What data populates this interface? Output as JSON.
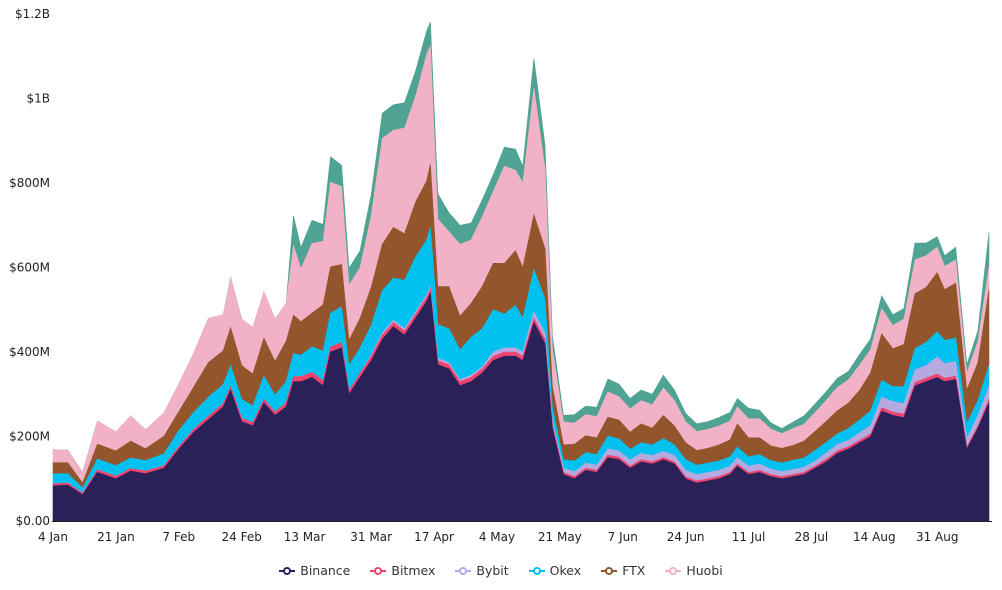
{
  "chart_data": {
    "type": "area",
    "stacked": true,
    "title": "",
    "xlabel": "",
    "ylabel": "",
    "ylim": [
      0,
      1200
    ],
    "y_unit": "M USD",
    "y_ticks": [
      {
        "value": 0,
        "label": "$0.00"
      },
      {
        "value": 200,
        "label": "$200M"
      },
      {
        "value": 400,
        "label": "$400M"
      },
      {
        "value": 600,
        "label": "$600M"
      },
      {
        "value": 800,
        "label": "$800M"
      },
      {
        "value": 1000,
        "label": "$1B"
      },
      {
        "value": 1200,
        "label": "$1.2B"
      }
    ],
    "x_unit": "days since 4 Jan",
    "xlim": [
      0,
      253
    ],
    "x_ticks": [
      {
        "value": 0,
        "label": "4 Jan"
      },
      {
        "value": 17,
        "label": "21 Jan"
      },
      {
        "value": 34,
        "label": "7 Feb"
      },
      {
        "value": 51,
        "label": "24 Feb"
      },
      {
        "value": 68,
        "label": "13 Mar"
      },
      {
        "value": 86,
        "label": "31 Mar"
      },
      {
        "value": 103,
        "label": "17 Apr"
      },
      {
        "value": 120,
        "label": "4 May"
      },
      {
        "value": 137,
        "label": "21 May"
      },
      {
        "value": 154,
        "label": "7 Jun"
      },
      {
        "value": 171,
        "label": "24 Jun"
      },
      {
        "value": 188,
        "label": "11 Jul"
      },
      {
        "value": 205,
        "label": "28 Jul"
      },
      {
        "value": 222,
        "label": "14 Aug"
      },
      {
        "value": 239,
        "label": "31 Aug"
      }
    ],
    "x": [
      0,
      4,
      8,
      12,
      17,
      21,
      25,
      30,
      34,
      38,
      42,
      46,
      48,
      51,
      54,
      57,
      60,
      63,
      65,
      67,
      70,
      73,
      75,
      78,
      80,
      83,
      86,
      89,
      92,
      95,
      98,
      101,
      102,
      104,
      107,
      110,
      113,
      116,
      119,
      122,
      125,
      127,
      130,
      133,
      135,
      138,
      141,
      144,
      147,
      150,
      153,
      156,
      159,
      162,
      165,
      168,
      171,
      174,
      177,
      180,
      183,
      185,
      188,
      191,
      194,
      197,
      200,
      203,
      206,
      209,
      212,
      215,
      218,
      221,
      224,
      227,
      230,
      233,
      236,
      239,
      241,
      244,
      247,
      250,
      253
    ],
    "legend_position": "bottom",
    "grid": false,
    "series": [
      {
        "name": "Binance",
        "color": "#2b2159",
        "in_legend": true,
        "values": [
          83,
          85,
          62,
          115,
          100,
          118,
          112,
          125,
          170,
          210,
          240,
          270,
          310,
          235,
          225,
          280,
          250,
          270,
          330,
          330,
          340,
          320,
          400,
          410,
          300,
          340,
          380,
          430,
          460,
          440,
          480,
          520,
          540,
          370,
          360,
          320,
          330,
          350,
          380,
          390,
          390,
          380,
          470,
          420,
          220,
          110,
          100,
          120,
          115,
          150,
          145,
          125,
          140,
          135,
          145,
          135,
          100,
          90,
          95,
          100,
          110,
          130,
          110,
          115,
          105,
          100,
          105,
          110,
          125,
          140,
          160,
          170,
          185,
          200,
          260,
          250,
          245,
          320,
          330,
          340,
          330,
          335,
          170,
          220,
          280
        ]
      },
      {
        "name": "Bitmex",
        "color": "#ef4470",
        "in_legend": true,
        "values": [
          5,
          5,
          4,
          6,
          6,
          6,
          6,
          6,
          6,
          7,
          8,
          8,
          8,
          8,
          8,
          8,
          8,
          10,
          12,
          12,
          12,
          12,
          12,
          12,
          8,
          10,
          10,
          10,
          10,
          10,
          10,
          10,
          10,
          10,
          10,
          10,
          10,
          10,
          10,
          10,
          10,
          10,
          10,
          10,
          8,
          5,
          5,
          5,
          5,
          6,
          6,
          5,
          5,
          5,
          5,
          5,
          5,
          5,
          5,
          5,
          5,
          5,
          5,
          5,
          5,
          5,
          5,
          5,
          5,
          6,
          6,
          6,
          6,
          6,
          8,
          8,
          8,
          8,
          8,
          8,
          8,
          8,
          5,
          5,
          8
        ]
      },
      {
        "name": "Bybit",
        "color": "#b4aae0",
        "in_legend": true,
        "values": [
          0,
          0,
          0,
          0,
          0,
          0,
          0,
          0,
          0,
          0,
          0,
          0,
          0,
          0,
          0,
          0,
          0,
          0,
          0,
          0,
          0,
          0,
          0,
          0,
          0,
          0,
          3,
          5,
          5,
          5,
          5,
          5,
          5,
          5,
          5,
          5,
          5,
          5,
          10,
          10,
          10,
          10,
          15,
          15,
          10,
          10,
          12,
          12,
          12,
          15,
          15,
          15,
          15,
          15,
          15,
          15,
          15,
          15,
          15,
          15,
          15,
          15,
          15,
          15,
          13,
          12,
          12,
          12,
          12,
          15,
          15,
          15,
          18,
          20,
          25,
          25,
          25,
          30,
          30,
          40,
          35,
          35,
          20,
          25,
          30
        ]
      },
      {
        "name": "Okex",
        "color": "#00c1ef",
        "in_legend": true,
        "values": [
          24,
          22,
          12,
          26,
          25,
          25,
          25,
          28,
          38,
          40,
          45,
          45,
          50,
          45,
          40,
          55,
          40,
          50,
          55,
          50,
          60,
          70,
          80,
          85,
          60,
          60,
          70,
          100,
          100,
          115,
          130,
          130,
          140,
          80,
          80,
          70,
          90,
          90,
          100,
          80,
          100,
          80,
          100,
          80,
          30,
          20,
          25,
          25,
          25,
          30,
          28,
          25,
          25,
          25,
          30,
          25,
          25,
          22,
          22,
          22,
          22,
          25,
          22,
          22,
          20,
          20,
          22,
          22,
          25,
          25,
          25,
          28,
          30,
          35,
          40,
          35,
          40,
          50,
          55,
          60,
          55,
          55,
          35,
          35,
          50
        ]
      },
      {
        "name": "FTX",
        "color": "#93562c",
        "in_legend": true,
        "values": [
          26,
          26,
          12,
          35,
          35,
          40,
          28,
          42,
          45,
          60,
          82,
          80,
          90,
          80,
          75,
          90,
          80,
          95,
          90,
          80,
          80,
          110,
          110,
          100,
          60,
          70,
          90,
          110,
          120,
          110,
          130,
          140,
          150,
          90,
          100,
          80,
          80,
          100,
          110,
          120,
          130,
          120,
          130,
          120,
          50,
          35,
          40,
          40,
          40,
          45,
          45,
          40,
          45,
          40,
          55,
          45,
          40,
          35,
          35,
          38,
          40,
          55,
          45,
          40,
          35,
          35,
          35,
          40,
          45,
          50,
          55,
          60,
          70,
          90,
          110,
          90,
          100,
          130,
          130,
          140,
          120,
          130,
          80,
          90,
          180
        ]
      },
      {
        "name": "Huobi",
        "color": "#f1b1c7",
        "in_legend": true,
        "values": [
          31,
          30,
          25,
          55,
          45,
          60,
          45,
          55,
          65,
          80,
          105,
          85,
          120,
          110,
          110,
          110,
          100,
          90,
          165,
          125,
          165,
          150,
          200,
          185,
          130,
          120,
          170,
          250,
          230,
          250,
          250,
          300,
          280,
          160,
          130,
          170,
          150,
          165,
          170,
          230,
          190,
          200,
          300,
          190,
          90,
          55,
          50,
          50,
          50,
          60,
          55,
          55,
          55,
          55,
          65,
          60,
          50,
          45,
          45,
          45,
          45,
          40,
          45,
          45,
          40,
          35,
          40,
          40,
          45,
          50,
          55,
          55,
          60,
          55,
          60,
          55,
          60,
          80,
          75,
          60,
          55,
          55,
          40,
          50,
          55
        ]
      },
      {
        "name": "",
        "color": "#4ea392",
        "in_legend": false,
        "values": [
          0,
          0,
          0,
          0,
          0,
          0,
          0,
          0,
          0,
          0,
          0,
          0,
          0,
          0,
          0,
          0,
          0,
          0,
          70,
          50,
          55,
          40,
          60,
          50,
          40,
          40,
          50,
          60,
          60,
          60,
          60,
          55,
          56,
          60,
          45,
          45,
          40,
          40,
          40,
          45,
          50,
          40,
          70,
          55,
          30,
          15,
          20,
          20,
          22,
          30,
          30,
          25,
          25,
          25,
          30,
          25,
          20,
          18,
          18,
          20,
          20,
          20,
          25,
          20,
          15,
          12,
          15,
          20,
          20,
          20,
          22,
          20,
          25,
          25,
          30,
          25,
          25,
          40,
          30,
          25,
          25,
          30,
          20,
          25,
          80
        ]
      }
    ]
  }
}
